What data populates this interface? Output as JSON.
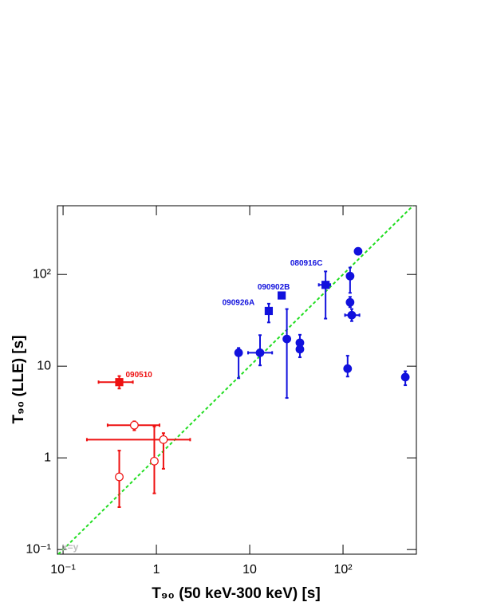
{
  "chart_data": {
    "type": "scatter",
    "x_label": "T₉₀ (50 keV-300 keV) [s]",
    "y_label": "T₉₀ (LLE) [s]",
    "xscale": "log",
    "yscale": "log",
    "xlim": [
      0.087,
      611
    ],
    "ylim": [
      0.089,
      562
    ],
    "xticks": [
      {
        "value": 0.1,
        "label": "10⁻¹"
      },
      1,
      10,
      {
        "value": 100,
        "label": "10²"
      }
    ],
    "yticks": [
      {
        "value": 0.1,
        "label": "10⁻¹"
      },
      1,
      10,
      {
        "value": 100,
        "label": "10²"
      }
    ],
    "reference_line": {
      "label": "x=y",
      "color": "#22dd22"
    },
    "series": [
      {
        "color": "#ee1111",
        "marker": "square",
        "filled": true,
        "x": [
          0.4
        ],
        "y": [
          6.7
        ],
        "x_lo": [
          0.24
        ],
        "x_hi": [
          0.56
        ],
        "y_lo": [
          5.7
        ],
        "y_hi": [
          7.8
        ]
      },
      {
        "color": "#ee1111",
        "marker": "circle",
        "filled": false,
        "x": [
          0.58,
          0.4,
          0.95,
          1.19
        ],
        "y": [
          2.27,
          0.62,
          0.92,
          1.58
        ],
        "x_lo": [
          0.3,
          null,
          null,
          0.18
        ],
        "x_hi": [
          1.08,
          null,
          null,
          2.3
        ],
        "y_lo": [
          2.0,
          0.29,
          0.41,
          0.76
        ],
        "y_hi": [
          2.5,
          1.2,
          2.2,
          1.86
        ]
      },
      {
        "color": "#1111dd",
        "marker": "circle",
        "filled": true,
        "x": [
          7.6,
          12.9,
          25,
          34.5,
          34.5,
          145,
          119,
          119,
          124,
          112,
          465
        ],
        "y": [
          14,
          14,
          19.8,
          18,
          15.3,
          179,
          96,
          49.7,
          36,
          9.4,
          7.6
        ],
        "x_lo": [
          null,
          9.6,
          null,
          null,
          null,
          null,
          null,
          null,
          105,
          null,
          null
        ],
        "x_hi": [
          null,
          17.4,
          null,
          null,
          null,
          null,
          null,
          null,
          150,
          null,
          null
        ],
        "y_lo": [
          7.4,
          10.2,
          4.5,
          14.5,
          12.5,
          null,
          63,
          44,
          31,
          7.7,
          6.2
        ],
        "y_hi": [
          15.8,
          21.8,
          42,
          22,
          18,
          null,
          119,
          57,
          42,
          13,
          8.8
        ]
      },
      {
        "color": "#1111dd",
        "marker": "square",
        "filled": true,
        "x": [
          16,
          22,
          65
        ],
        "y": [
          40,
          59,
          77
        ],
        "x_lo": [
          null,
          null,
          55
        ],
        "x_hi": [
          null,
          null,
          73
        ],
        "y_lo": [
          30,
          null,
          33
        ],
        "y_hi": [
          48,
          null,
          108
        ]
      }
    ],
    "annotations": [
      {
        "text": "090510",
        "color": "#ee1111"
      },
      {
        "text": "090926A",
        "color": "#1111dd"
      },
      {
        "text": "090902B",
        "color": "#1111dd"
      },
      {
        "text": "080916C",
        "color": "#1111dd"
      }
    ]
  }
}
